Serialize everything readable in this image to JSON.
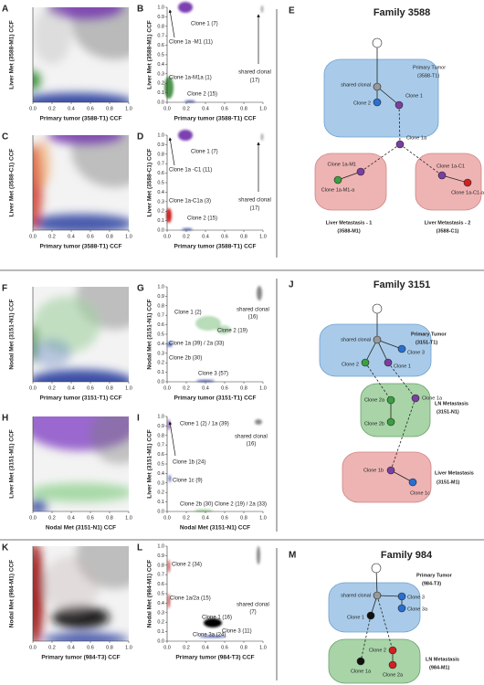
{
  "x_tick_labels": [
    "0.0",
    "0.2",
    "0.4",
    "0.6",
    "0.8",
    "1.0"
  ],
  "y_tick_labels": [
    "0.0",
    "0.1",
    "0.2",
    "0.3",
    "0.4",
    "0.5",
    "0.6",
    "0.7",
    "0.8",
    "0.9",
    "1.0"
  ],
  "families": [
    {
      "panels": [
        {
          "letter": "A",
          "y_label": "Liver Met (3588-M1) CCF",
          "x_label": "Primary tumor (3588-T1) CCF"
        },
        {
          "letter": "B",
          "y_label": "Liver Met (3588-M1) CCF",
          "x_label": "Primary tumor (3588-T1) CCF",
          "annotations": [
            "Clone 1 (7)",
            "Clone 1a -M1 (11)",
            "shared clonal",
            "(17)",
            "Clone 1a-M1a (1)",
            "Clone 2 (15)"
          ]
        },
        {
          "letter": "C",
          "y_label": "Liver Met (3588-C1) CCF",
          "x_label": "Primary tumor (3588-T1) CCF"
        },
        {
          "letter": "D",
          "y_label": "Liver Met (3588-C1) CCF",
          "x_label": "Primary tumor (3588-T1) CCF",
          "annotations": [
            "Clone 1 (7)",
            "Clone 1a -C1 (11)",
            "shared clonal",
            "(17)",
            "Clone 1a-C1a (3)",
            "Clone 2 (15)"
          ]
        }
      ],
      "diagram": {
        "letter": "E",
        "title": "Family 3588",
        "labels": [
          "shared clonal",
          "Primary Tumor",
          "(3588-T1)",
          "Clone 2",
          "Clone 1",
          "Clone 1a",
          "Clone 1a-M1",
          "Clone 1a-M1-a",
          "Clone 1a-C1",
          "Clone 1a-C1-a",
          "Liver Metastasis - 1",
          "(3588-M1)",
          "Liver Metastasis - 2",
          "(3588-C1)"
        ]
      }
    },
    {
      "panels": [
        {
          "letter": "F",
          "y_label": "Nodal Met (3151-N1) CCF",
          "x_label": "Primary tumor (3151-T1) CCF"
        },
        {
          "letter": "G",
          "y_label": "Nodal Met (3151-N1) CCF",
          "x_label": "Primary tumor (3151-T1) CCF",
          "annotations": [
            "Clone 1 (2)",
            "shared clonal",
            "(16)",
            "Clone 2 (19)",
            "Clone 1a (39) / 2a (33)",
            "Clone 2b (30)",
            "Clone 3 (57)"
          ]
        },
        {
          "letter": "H",
          "y_label": "Liver Met (3151-M1) CCF",
          "x_label": "Nodal Met (3151-N1) CCF"
        },
        {
          "letter": "I",
          "y_label": "Liver Met (3151-M1) CCF",
          "x_label": "Nodal Met (3151-N1) CCF",
          "annotations": [
            "Clone 1 (2) / 1a (39)",
            "shared clonal",
            "(16)",
            "Clone 1b (24)",
            "Clone 1c (9)",
            "Clone 2b (30)",
            "Clone 2 (19) / 2a (33)"
          ]
        }
      ],
      "diagram": {
        "letter": "J",
        "title": "Family 3151",
        "labels": [
          "shared clonal",
          "Primary Tumor",
          "(3151-T1)",
          "Clone 2",
          "Clone 3",
          "Clone 1",
          "Clone 2a",
          "Clone 1a",
          "Clone 2b",
          "LN Metastasis",
          "(3151-N1)",
          "Clone 1b",
          "Clone 1c",
          "Liver Metastasis",
          "(3151-M1)"
        ]
      }
    },
    {
      "panels": [
        {
          "letter": "K",
          "y_label": "Nodal Met (984-M1) CCF",
          "x_label": "Primary tumor (984-T3) CCF"
        },
        {
          "letter": "L",
          "y_label": "Nodal Met (984-M1) CCF",
          "x_label": "Primary tumor (984-T3) CCF",
          "annotations": [
            "Clone 2 (34)",
            "shared clonal",
            "(7)",
            "Clone 1a/2a (15)",
            "Clone 1 (16)",
            "Clone 3a (24)",
            "Clone 3 (11)"
          ]
        }
      ],
      "diagram": {
        "letter": "M",
        "title": "Family 984",
        "labels": [
          "shared clonal",
          "Primary Tumor",
          "(984-T3)",
          "Clone 3",
          "Clone 3a",
          "Clone 1",
          "Clone 2",
          "Clone 1a",
          "Clone 2a",
          "LN Metastasis",
          "(984-M1)"
        ]
      }
    }
  ]
}
